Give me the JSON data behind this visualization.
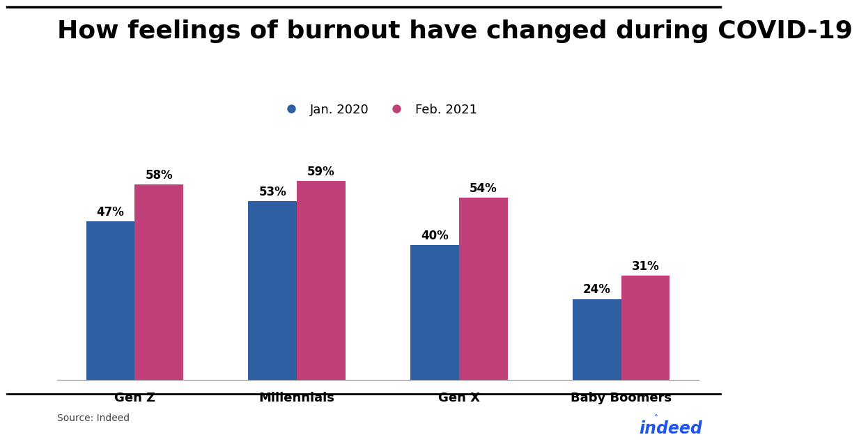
{
  "title": "How feelings of burnout have changed during COVID-19",
  "categories": [
    "Gen Z",
    "Millennials",
    "Gen X",
    "Baby Boomers"
  ],
  "jan_2020": [
    47,
    53,
    40,
    24
  ],
  "feb_2021": [
    58,
    59,
    54,
    31
  ],
  "blue_color": "#2E5FA3",
  "pink_color": "#C0407A",
  "legend_labels": [
    "Jan. 2020",
    "Feb. 2021"
  ],
  "source_text": "Source: Indeed",
  "background_color": "#FFFFFF",
  "bar_width": 0.3,
  "ylim": [
    0,
    70
  ],
  "title_fontsize": 26,
  "tick_fontsize": 13,
  "label_fontsize": 13,
  "annotation_fontsize": 12,
  "indeed_color": "#2255EE",
  "indeed_text": "indeed"
}
